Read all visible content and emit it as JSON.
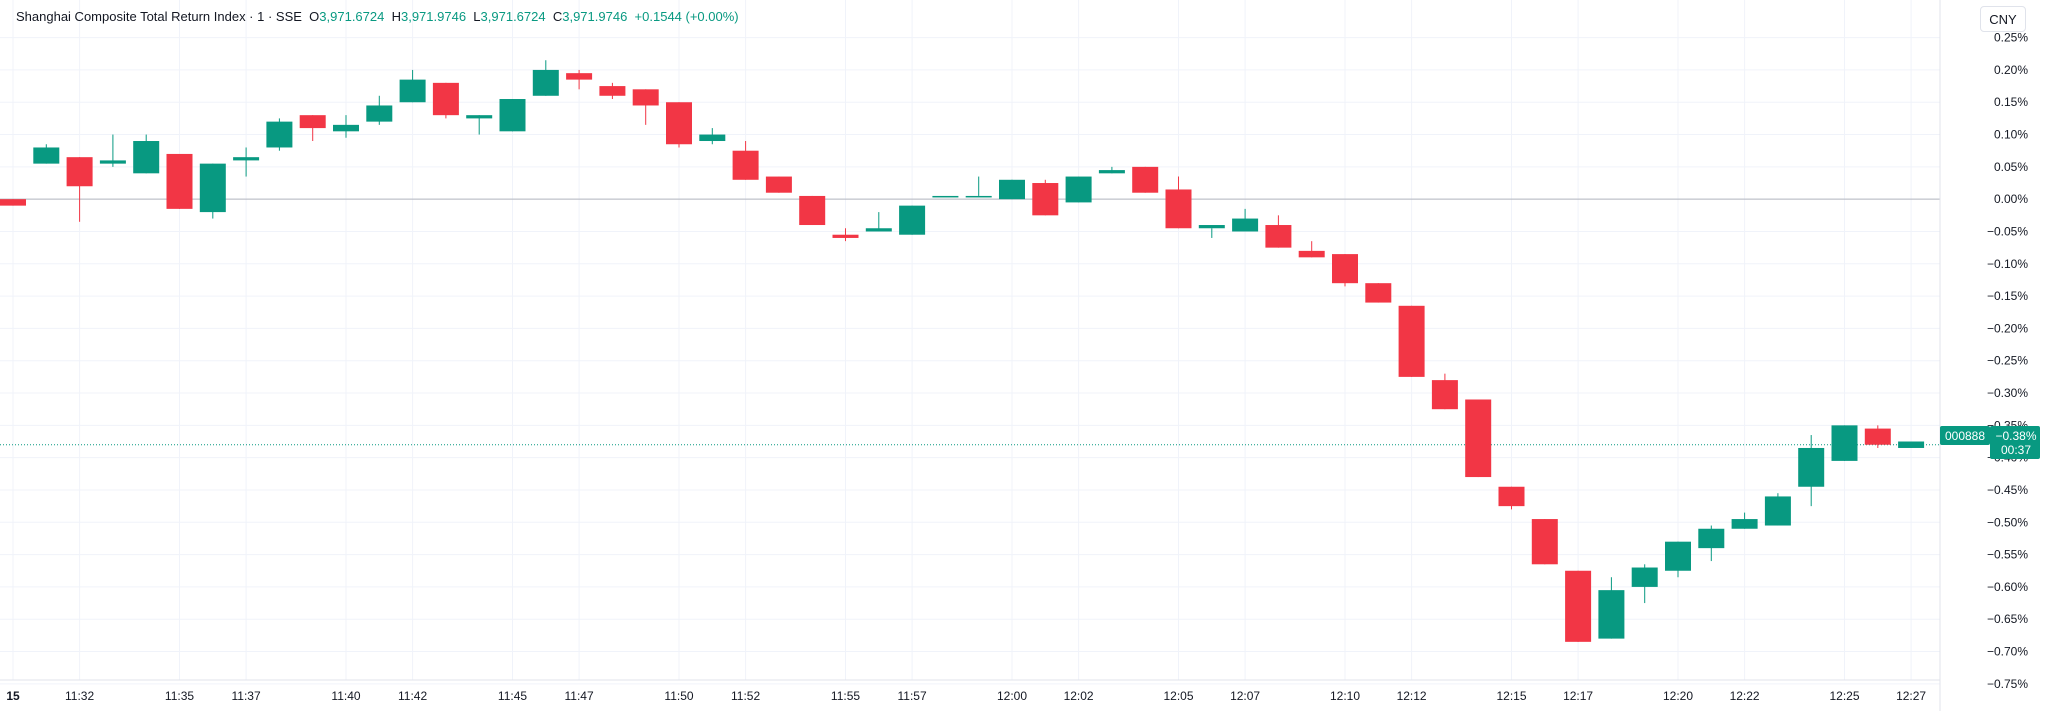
{
  "header": {
    "title": "Shanghai Composite Total Return Index · 1 · SSE",
    "open_label": "O",
    "open": "3,971.6724",
    "high_label": "H",
    "high": "3,971.9746",
    "low_label": "L",
    "low": "3,971.6724",
    "close_label": "C",
    "close": "3,971.9746",
    "change": "+0.1544 (+0.00%)"
  },
  "currency_button": "CNY",
  "price_tag": {
    "symbol": "000888",
    "value": "−0.38%",
    "countdown": "00:37",
    "level": -0.38
  },
  "colors": {
    "up": "#089981",
    "down": "#f23645",
    "grid": "#f0f3fa",
    "axis_text": "#131722",
    "zero_line": "#b2b5be"
  },
  "chart_data": {
    "type": "candlestick",
    "y_unit": "%",
    "ylim": [
      -0.775,
      0.285
    ],
    "y_ticks": [
      "0.25%",
      "0.20%",
      "0.15%",
      "0.10%",
      "0.05%",
      "0.00%",
      "−0.05%",
      "−0.10%",
      "−0.15%",
      "−0.20%",
      "−0.25%",
      "−0.30%",
      "−0.35%",
      "−0.40%",
      "−0.45%",
      "−0.50%",
      "−0.55%",
      "−0.60%",
      "−0.65%",
      "−0.70%",
      "−0.75%"
    ],
    "y_tick_values": [
      0.25,
      0.2,
      0.15,
      0.1,
      0.05,
      0.0,
      -0.05,
      -0.1,
      -0.15,
      -0.2,
      -0.25,
      -0.3,
      -0.35,
      -0.4,
      -0.45,
      -0.5,
      -0.55,
      -0.6,
      -0.65,
      -0.7,
      -0.75
    ],
    "x_ticks": [
      {
        "label": "15",
        "index": 0
      },
      {
        "label": "11:32",
        "index": 2
      },
      {
        "label": "11:35",
        "index": 5
      },
      {
        "label": "11:37",
        "index": 7
      },
      {
        "label": "11:40",
        "index": 10
      },
      {
        "label": "11:42",
        "index": 12
      },
      {
        "label": "11:45",
        "index": 15
      },
      {
        "label": "11:47",
        "index": 17
      },
      {
        "label": "11:50",
        "index": 20
      },
      {
        "label": "11:52",
        "index": 22
      },
      {
        "label": "11:55",
        "index": 25
      },
      {
        "label": "11:57",
        "index": 27
      },
      {
        "label": "12:00",
        "index": 30
      },
      {
        "label": "12:02",
        "index": 32
      },
      {
        "label": "12:05",
        "index": 35
      },
      {
        "label": "12:07",
        "index": 37
      },
      {
        "label": "12:10",
        "index": 40
      },
      {
        "label": "12:12",
        "index": 42
      },
      {
        "label": "12:15",
        "index": 45
      },
      {
        "label": "12:17",
        "index": 47
      },
      {
        "label": "12:20",
        "index": 50
      },
      {
        "label": "12:22",
        "index": 52
      },
      {
        "label": "12:25",
        "index": 55
      },
      {
        "label": "12:27",
        "index": 57
      }
    ],
    "candles": [
      {
        "o": 0.0,
        "h": 0.0,
        "l": -0.01,
        "c": -0.01
      },
      {
        "o": 0.055,
        "h": 0.085,
        "l": 0.055,
        "c": 0.08
      },
      {
        "o": 0.065,
        "h": 0.065,
        "l": -0.035,
        "c": 0.02
      },
      {
        "o": 0.055,
        "h": 0.1,
        "l": 0.05,
        "c": 0.06
      },
      {
        "o": 0.04,
        "h": 0.1,
        "l": 0.04,
        "c": 0.09
      },
      {
        "o": 0.07,
        "h": 0.07,
        "l": -0.015,
        "c": -0.015
      },
      {
        "o": -0.02,
        "h": 0.055,
        "l": -0.03,
        "c": 0.055
      },
      {
        "o": 0.06,
        "h": 0.08,
        "l": 0.035,
        "c": 0.065
      },
      {
        "o": 0.08,
        "h": 0.125,
        "l": 0.075,
        "c": 0.12
      },
      {
        "o": 0.13,
        "h": 0.13,
        "l": 0.09,
        "c": 0.11
      },
      {
        "o": 0.105,
        "h": 0.13,
        "l": 0.095,
        "c": 0.115
      },
      {
        "o": 0.12,
        "h": 0.16,
        "l": 0.115,
        "c": 0.145
      },
      {
        "o": 0.15,
        "h": 0.2,
        "l": 0.15,
        "c": 0.185
      },
      {
        "o": 0.18,
        "h": 0.18,
        "l": 0.125,
        "c": 0.13
      },
      {
        "o": 0.125,
        "h": 0.13,
        "l": 0.1,
        "c": 0.13
      },
      {
        "o": 0.105,
        "h": 0.155,
        "l": 0.105,
        "c": 0.155
      },
      {
        "o": 0.16,
        "h": 0.215,
        "l": 0.16,
        "c": 0.2
      },
      {
        "o": 0.195,
        "h": 0.2,
        "l": 0.17,
        "c": 0.185
      },
      {
        "o": 0.175,
        "h": 0.18,
        "l": 0.155,
        "c": 0.16
      },
      {
        "o": 0.17,
        "h": 0.17,
        "l": 0.115,
        "c": 0.145
      },
      {
        "o": 0.15,
        "h": 0.15,
        "l": 0.08,
        "c": 0.085
      },
      {
        "o": 0.09,
        "h": 0.11,
        "l": 0.085,
        "c": 0.1
      },
      {
        "o": 0.075,
        "h": 0.09,
        "l": 0.03,
        "c": 0.03
      },
      {
        "o": 0.035,
        "h": 0.035,
        "l": 0.01,
        "c": 0.01
      },
      {
        "o": 0.005,
        "h": 0.005,
        "l": -0.04,
        "c": -0.04
      },
      {
        "o": -0.055,
        "h": -0.045,
        "l": -0.065,
        "c": -0.06
      },
      {
        "o": -0.05,
        "h": -0.02,
        "l": -0.05,
        "c": -0.045
      },
      {
        "o": -0.055,
        "h": -0.01,
        "l": -0.055,
        "c": -0.01
      },
      {
        "o": 0.005,
        "h": 0.005,
        "l": 0.005,
        "c": 0.005
      },
      {
        "o": 0.005,
        "h": 0.035,
        "l": 0.005,
        "c": 0.005
      },
      {
        "o": 0.0,
        "h": 0.03,
        "l": 0.0,
        "c": 0.03
      },
      {
        "o": 0.025,
        "h": 0.03,
        "l": -0.025,
        "c": -0.025
      },
      {
        "o": -0.005,
        "h": 0.035,
        "l": -0.005,
        "c": 0.035
      },
      {
        "o": 0.04,
        "h": 0.05,
        "l": 0.04,
        "c": 0.045
      },
      {
        "o": 0.05,
        "h": 0.05,
        "l": 0.01,
        "c": 0.01
      },
      {
        "o": 0.015,
        "h": 0.035,
        "l": -0.045,
        "c": -0.045
      },
      {
        "o": -0.045,
        "h": -0.045,
        "l": -0.06,
        "c": -0.04
      },
      {
        "o": -0.05,
        "h": -0.015,
        "l": -0.05,
        "c": -0.03
      },
      {
        "o": -0.04,
        "h": -0.025,
        "l": -0.075,
        "c": -0.075
      },
      {
        "o": -0.08,
        "h": -0.065,
        "l": -0.09,
        "c": -0.09
      },
      {
        "o": -0.085,
        "h": -0.085,
        "l": -0.135,
        "c": -0.13
      },
      {
        "o": -0.13,
        "h": -0.13,
        "l": -0.16,
        "c": -0.16
      },
      {
        "o": -0.165,
        "h": -0.165,
        "l": -0.275,
        "c": -0.275
      },
      {
        "o": -0.28,
        "h": -0.27,
        "l": -0.325,
        "c": -0.325
      },
      {
        "o": -0.31,
        "h": -0.31,
        "l": -0.43,
        "c": -0.43
      },
      {
        "o": -0.445,
        "h": -0.445,
        "l": -0.48,
        "c": -0.475
      },
      {
        "o": -0.495,
        "h": -0.495,
        "l": -0.565,
        "c": -0.565
      },
      {
        "o": -0.575,
        "h": -0.575,
        "l": -0.685,
        "c": -0.685
      },
      {
        "o": -0.68,
        "h": -0.585,
        "l": -0.68,
        "c": -0.605
      },
      {
        "o": -0.6,
        "h": -0.565,
        "l": -0.625,
        "c": -0.57
      },
      {
        "o": -0.575,
        "h": -0.53,
        "l": -0.585,
        "c": -0.53
      },
      {
        "o": -0.54,
        "h": -0.505,
        "l": -0.56,
        "c": -0.51
      },
      {
        "o": -0.51,
        "h": -0.485,
        "l": -0.51,
        "c": -0.495
      },
      {
        "o": -0.505,
        "h": -0.455,
        "l": -0.505,
        "c": -0.46
      },
      {
        "o": -0.445,
        "h": -0.365,
        "l": -0.475,
        "c": -0.385
      },
      {
        "o": -0.405,
        "h": -0.35,
        "l": -0.405,
        "c": -0.35
      },
      {
        "o": -0.355,
        "h": -0.35,
        "l": -0.385,
        "c": -0.38
      },
      {
        "o": -0.385,
        "h": -0.375,
        "l": -0.385,
        "c": -0.375
      }
    ]
  }
}
